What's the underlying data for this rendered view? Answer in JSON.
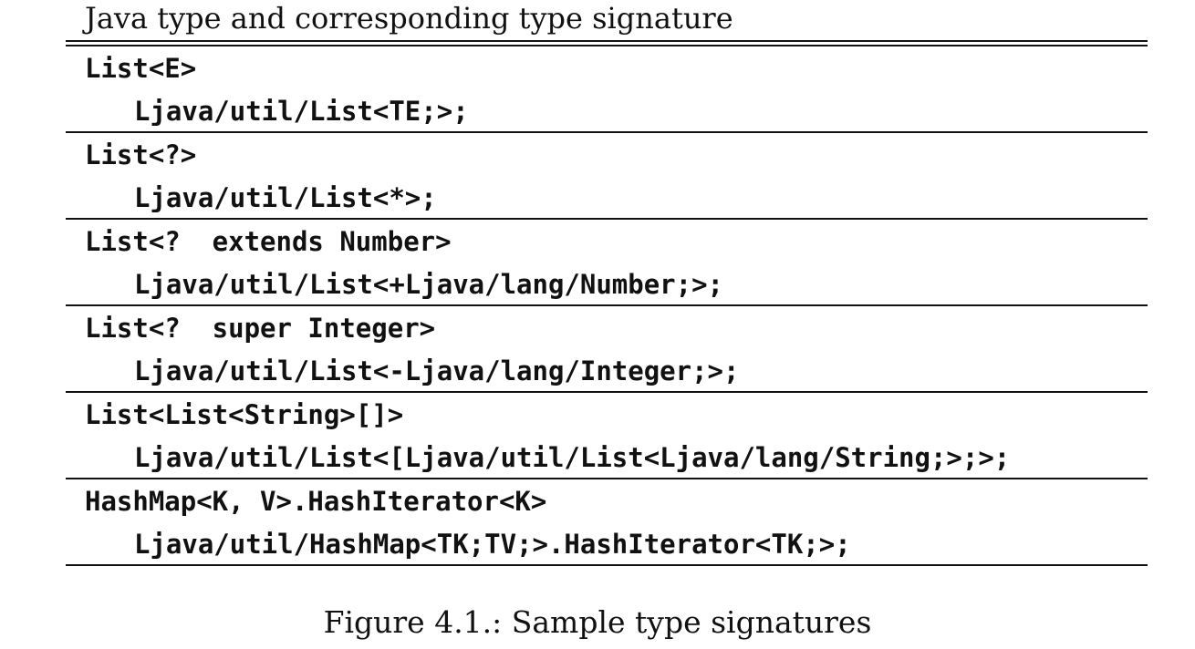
{
  "table": {
    "header": "Java type and corresponding type signature",
    "rows": [
      {
        "java_type": "List<E>",
        "signature": "Ljava/util/List<TE;>;"
      },
      {
        "java_type": "List<?>",
        "signature": "Ljava/util/List<*>;"
      },
      {
        "java_type": "List<?  extends Number>",
        "signature": "Ljava/util/List<+Ljava/lang/Number;>;"
      },
      {
        "java_type": "List<?  super Integer>",
        "signature": "Ljava/util/List<-Ljava/lang/Integer;>;"
      },
      {
        "java_type": "List<List<String>[]>",
        "signature": "Ljava/util/List<[Ljava/util/List<Ljava/lang/String;>;>;"
      },
      {
        "java_type": "HashMap<K, V>.HashIterator<K>",
        "signature": "Ljava/util/HashMap<TK;TV;>.HashIterator<TK;>;"
      }
    ]
  },
  "caption": "Figure 4.1.: Sample type signatures"
}
